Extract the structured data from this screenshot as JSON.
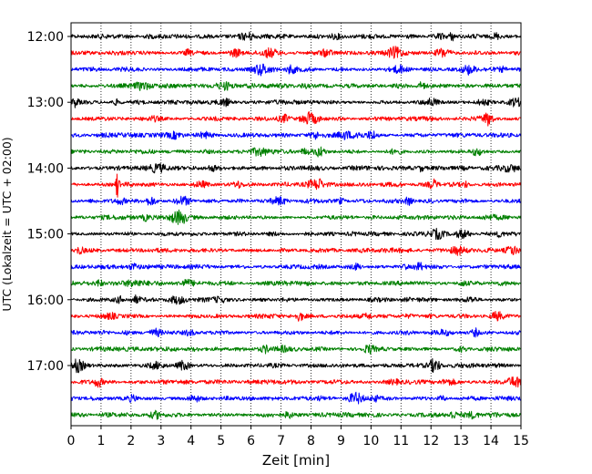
{
  "chart_data": {
    "type": "line",
    "xlabel": "Zeit  [min]",
    "ylabel": "UTC (Lokalzeit = UTC + 02:00)",
    "xlim": [
      0,
      15
    ],
    "x_ticks": [
      "0",
      "1",
      "2",
      "3",
      "4",
      "5",
      "6",
      "7",
      "8",
      "9",
      "10",
      "11",
      "12",
      "13",
      "14",
      "15"
    ],
    "y_ticks": [
      "12:00",
      "13:00",
      "14:00",
      "15:00",
      "16:00",
      "17:00"
    ],
    "grid": "vertical dotted",
    "row_minutes": 15,
    "start_time": "12:00",
    "trace_colors": [
      "#000000",
      "#ff0000",
      "#0000ff",
      "#008000"
    ],
    "events": [
      {
        "row": 9,
        "minute": 1.55,
        "amplitude": "large"
      },
      {
        "row": 1,
        "minute": 10.8,
        "amplitude": "medium"
      },
      {
        "row": 21,
        "minute": 14.8,
        "amplitude": "medium"
      },
      {
        "row": 22,
        "minute": 9.5,
        "amplitude": "medium"
      }
    ]
  }
}
